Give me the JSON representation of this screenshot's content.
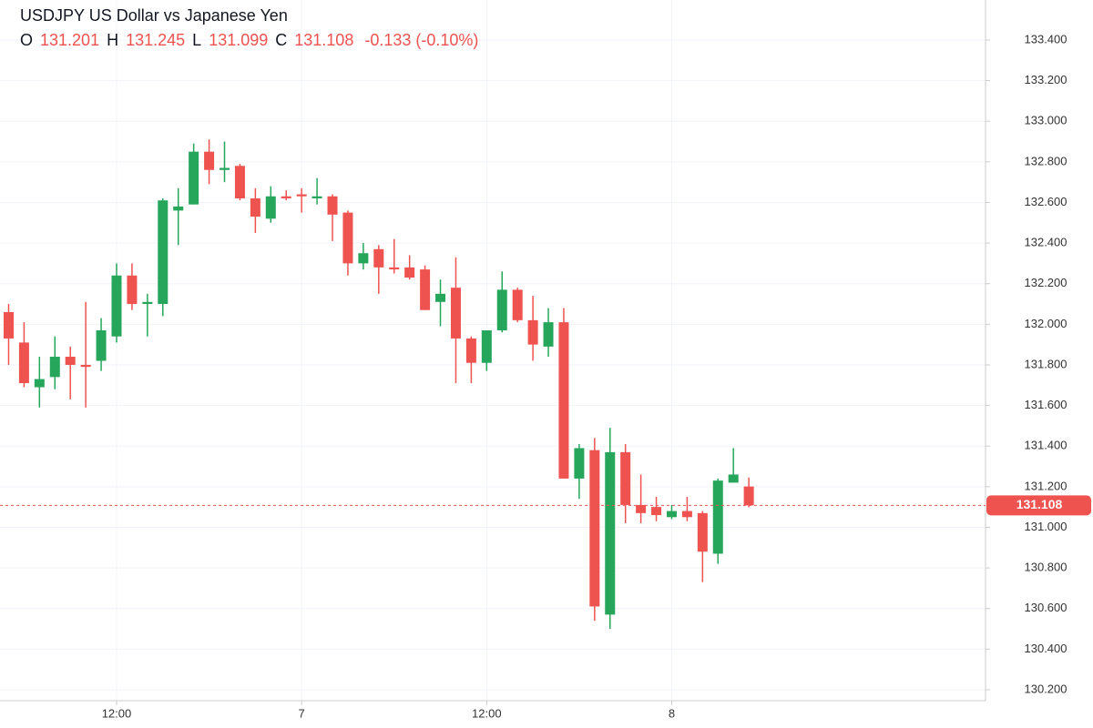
{
  "chart_data": {
    "type": "candlestick",
    "title": "USDJPY US Dollar vs Japanese Yen",
    "ohlc_labels": [
      "O",
      "H",
      "L",
      "C"
    ],
    "change": "-0.133 (-0.10%)",
    "x": [
      5,
      6,
      7,
      8,
      9,
      10,
      11,
      12,
      13,
      14,
      15,
      16,
      17,
      18,
      19,
      20,
      21,
      22,
      23,
      24,
      25,
      26,
      27,
      28,
      29,
      30,
      31,
      32,
      33,
      34,
      35,
      36,
      37,
      38,
      39,
      40,
      41,
      42,
      43,
      44,
      45,
      46,
      47,
      48,
      49,
      50,
      51,
      52,
      53
    ],
    "open": [
      132.06,
      131.91,
      131.69,
      131.74,
      131.84,
      131.8,
      131.82,
      131.94,
      132.24,
      132.1,
      132.1,
      132.56,
      132.59,
      132.85,
      132.76,
      132.78,
      132.62,
      132.52,
      132.63,
      132.64,
      132.62,
      132.63,
      132.55,
      132.3,
      132.37,
      132.28,
      132.28,
      132.27,
      132.11,
      132.18,
      131.93,
      131.81,
      131.97,
      132.17,
      132.02,
      131.89,
      132.01,
      131.24,
      131.38,
      130.57,
      131.37,
      131.11,
      131.1,
      131.05,
      131.08,
      131.07,
      130.87,
      131.22,
      131.201
    ],
    "high": [
      132.1,
      132.01,
      131.84,
      131.94,
      131.89,
      132.11,
      132.03,
      132.3,
      132.3,
      132.15,
      132.62,
      132.67,
      132.89,
      132.91,
      132.9,
      132.79,
      132.67,
      132.68,
      132.66,
      132.67,
      132.72,
      132.64,
      132.56,
      132.4,
      132.39,
      132.42,
      132.34,
      132.29,
      132.22,
      132.33,
      131.94,
      131.97,
      132.26,
      132.18,
      132.14,
      132.08,
      132.08,
      131.41,
      131.44,
      131.49,
      131.41,
      131.26,
      131.15,
      131.11,
      131.15,
      131.08,
      131.24,
      131.39,
      131.245
    ],
    "low": [
      131.8,
      131.69,
      131.59,
      131.68,
      131.63,
      131.59,
      131.77,
      131.91,
      132.07,
      131.94,
      132.04,
      132.39,
      132.59,
      132.69,
      132.7,
      132.61,
      132.45,
      132.5,
      132.61,
      132.55,
      132.59,
      132.41,
      132.24,
      132.27,
      132.15,
      132.25,
      132.22,
      132.07,
      131.99,
      131.71,
      131.71,
      131.77,
      131.96,
      132.01,
      131.82,
      131.84,
      131.24,
      131.14,
      130.54,
      130.5,
      131.02,
      131.02,
      131.03,
      131.04,
      131.03,
      130.73,
      130.82,
      131.22,
      131.099
    ],
    "close": [
      131.93,
      131.71,
      131.73,
      131.84,
      131.8,
      131.79,
      131.97,
      132.24,
      132.1,
      132.11,
      132.61,
      132.58,
      132.85,
      132.76,
      132.77,
      132.62,
      132.53,
      132.63,
      132.62,
      132.63,
      132.63,
      132.54,
      132.3,
      132.35,
      132.28,
      132.27,
      132.23,
      132.07,
      132.15,
      131.93,
      131.81,
      131.97,
      132.17,
      132.02,
      131.9,
      132.01,
      131.24,
      131.39,
      130.61,
      131.37,
      131.11,
      131.07,
      131.06,
      131.08,
      131.05,
      130.88,
      131.23,
      131.26,
      131.108
    ],
    "up_color": "#26a65b",
    "down_color": "#ef5350",
    "xlim": [
      4.44,
      68.35
    ],
    "xticks": [
      {
        "value": 12,
        "label": "12:00"
      },
      {
        "value": 24,
        "label": "7"
      },
      {
        "value": 36,
        "label": "12:00"
      },
      {
        "value": 48,
        "label": "8"
      }
    ],
    "ylim": [
      130.146,
      133.597
    ],
    "yticks": [
      {
        "value": 130.2,
        "label": "130.200"
      },
      {
        "value": 130.4,
        "label": "130.400"
      },
      {
        "value": 130.6,
        "label": "130.600"
      },
      {
        "value": 130.8,
        "label": "130.800"
      },
      {
        "value": 131.0,
        "label": "131.000"
      },
      {
        "value": 131.2,
        "label": "131.200"
      },
      {
        "value": 131.4,
        "label": "131.400"
      },
      {
        "value": 131.6,
        "label": "131.600"
      },
      {
        "value": 131.8,
        "label": "131.800"
      },
      {
        "value": 132.0,
        "label": "132.000"
      },
      {
        "value": 132.2,
        "label": "132.200"
      },
      {
        "value": 132.4,
        "label": "132.400"
      },
      {
        "value": 132.6,
        "label": "132.600"
      },
      {
        "value": 132.8,
        "label": "132.800"
      },
      {
        "value": 133.0,
        "label": "133.000"
      },
      {
        "value": 133.2,
        "label": "133.200"
      },
      {
        "value": 133.4,
        "label": "133.400"
      }
    ],
    "grid": true
  }
}
